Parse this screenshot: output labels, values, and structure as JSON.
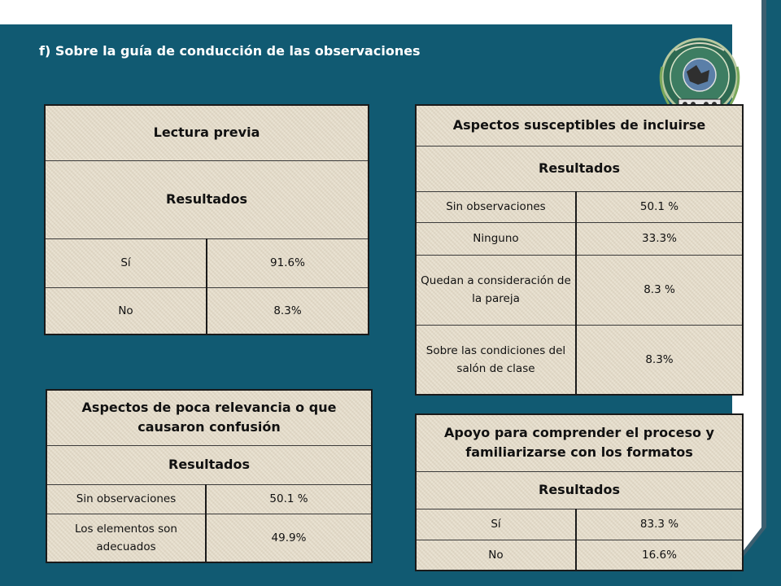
{
  "heading": "f) Sobre la guía de conducción de las observaciones",
  "tables": [
    {
      "title": "Lectura previa",
      "subtitle": "Resultados",
      "rows": [
        {
          "label": "Sí",
          "value": "91.6%"
        },
        {
          "label": "No",
          "value": "8.3%"
        }
      ]
    },
    {
      "title": "Aspectos susceptibles de incluirse",
      "subtitle": "Resultados",
      "rows": [
        {
          "label": "Sin observaciones",
          "value": "50.1 %"
        },
        {
          "label": "Ninguno",
          "value": "33.3%"
        },
        {
          "label": "Quedan a consideración de la pareja",
          "value": "8.3 %"
        },
        {
          "label": "Sobre las condiciones del salón de clase",
          "value": "8.3%"
        }
      ]
    },
    {
      "title": "Aspectos de poca relevancia o que causaron confusión",
      "subtitle": "Resultados",
      "rows": [
        {
          "label": "Sin observaciones",
          "value": "50.1 %"
        },
        {
          "label": "Los elementos son adecuados",
          "value": "49.9%"
        }
      ]
    },
    {
      "title": "Apoyo para comprender el proceso y familiarizarse con los formatos",
      "subtitle": "Resultados",
      "rows": [
        {
          "label": "Sí",
          "value": "83.3 %"
        },
        {
          "label": "No",
          "value": "16.6%"
        }
      ]
    }
  ],
  "colors": {
    "background": "#125b72",
    "panel": "#ffffff",
    "table_fill": "#e8e0d0",
    "heading_text": "#ffffff"
  },
  "logo_icon": "institution-seal-icon"
}
